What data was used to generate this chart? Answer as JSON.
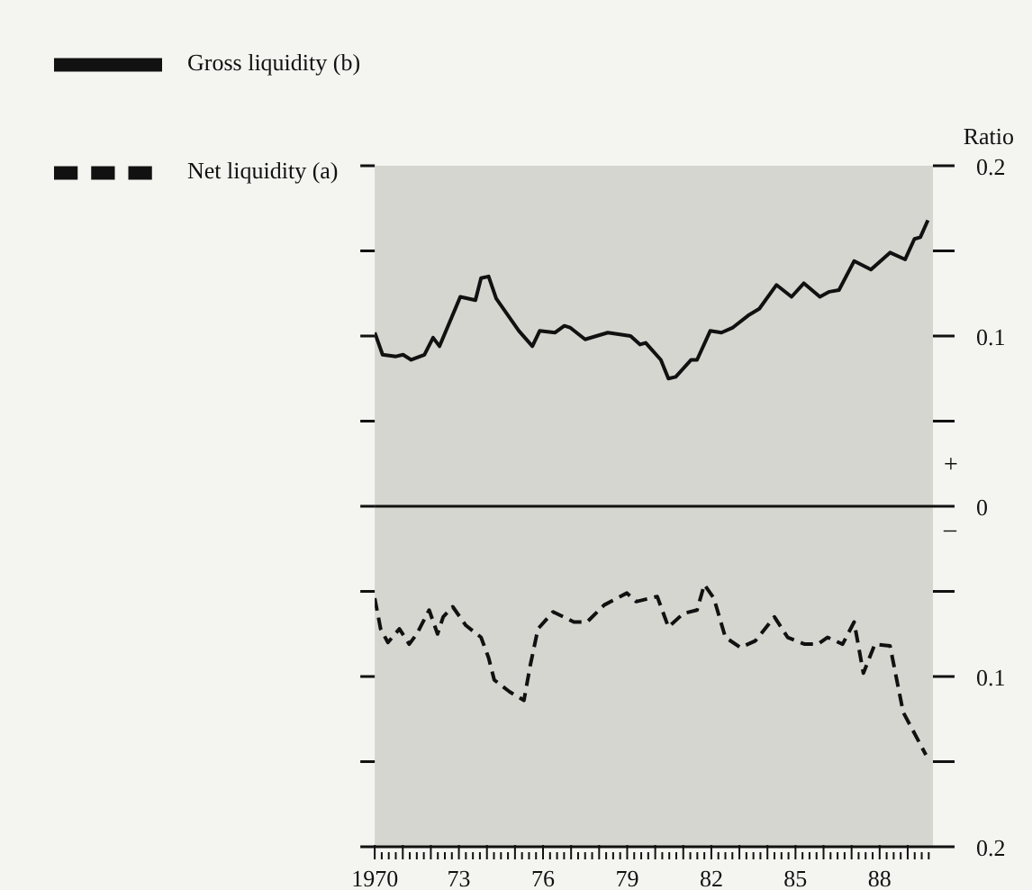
{
  "chart_data": {
    "type": "line",
    "ylabel": "Ratio",
    "legend": "top left",
    "grid": false,
    "xlim": [
      1970,
      1989.9
    ],
    "xticks": [
      {
        "value": 1970,
        "label": "1970"
      },
      {
        "value": 1970.25,
        "label": null
      },
      {
        "value": 1970.5,
        "label": null
      },
      {
        "value": 1970.75,
        "label": null
      },
      {
        "value": 1971,
        "label": null
      },
      {
        "value": 1971.25,
        "label": null
      },
      {
        "value": 1971.5,
        "label": null
      },
      {
        "value": 1971.75,
        "label": null
      },
      {
        "value": 1972,
        "label": null
      },
      {
        "value": 1972.25,
        "label": null
      },
      {
        "value": 1972.5,
        "label": null
      },
      {
        "value": 1972.75,
        "label": null
      },
      {
        "value": 1973,
        "label": "73"
      },
      {
        "value": 1973.25,
        "label": null
      },
      {
        "value": 1973.5,
        "label": null
      },
      {
        "value": 1973.75,
        "label": null
      },
      {
        "value": 1974,
        "label": null
      },
      {
        "value": 1974.25,
        "label": null
      },
      {
        "value": 1974.5,
        "label": null
      },
      {
        "value": 1974.75,
        "label": null
      },
      {
        "value": 1975,
        "label": null
      },
      {
        "value": 1975.25,
        "label": null
      },
      {
        "value": 1975.5,
        "label": null
      },
      {
        "value": 1975.75,
        "label": null
      },
      {
        "value": 1976,
        "label": "76"
      },
      {
        "value": 1976.25,
        "label": null
      },
      {
        "value": 1976.5,
        "label": null
      },
      {
        "value": 1976.75,
        "label": null
      },
      {
        "value": 1977,
        "label": null
      },
      {
        "value": 1977.25,
        "label": null
      },
      {
        "value": 1977.5,
        "label": null
      },
      {
        "value": 1977.75,
        "label": null
      },
      {
        "value": 1978,
        "label": null
      },
      {
        "value": 1978.25,
        "label": null
      },
      {
        "value": 1978.5,
        "label": null
      },
      {
        "value": 1978.75,
        "label": null
      },
      {
        "value": 1979,
        "label": "79"
      },
      {
        "value": 1979.25,
        "label": null
      },
      {
        "value": 1979.5,
        "label": null
      },
      {
        "value": 1979.75,
        "label": null
      },
      {
        "value": 1980,
        "label": null
      },
      {
        "value": 1980.25,
        "label": null
      },
      {
        "value": 1980.5,
        "label": null
      },
      {
        "value": 1980.75,
        "label": null
      },
      {
        "value": 1981,
        "label": null
      },
      {
        "value": 1981.25,
        "label": null
      },
      {
        "value": 1981.5,
        "label": null
      },
      {
        "value": 1981.75,
        "label": null
      },
      {
        "value": 1982,
        "label": "82"
      },
      {
        "value": 1982.25,
        "label": null
      },
      {
        "value": 1982.5,
        "label": null
      },
      {
        "value": 1982.75,
        "label": null
      },
      {
        "value": 1983,
        "label": null
      },
      {
        "value": 1983.25,
        "label": null
      },
      {
        "value": 1983.5,
        "label": null
      },
      {
        "value": 1983.75,
        "label": null
      },
      {
        "value": 1984,
        "label": null
      },
      {
        "value": 1984.25,
        "label": null
      },
      {
        "value": 1984.5,
        "label": null
      },
      {
        "value": 1984.75,
        "label": null
      },
      {
        "value": 1985,
        "label": "85"
      },
      {
        "value": 1985.25,
        "label": null
      },
      {
        "value": 1985.5,
        "label": null
      },
      {
        "value": 1985.75,
        "label": null
      },
      {
        "value": 1986,
        "label": null
      },
      {
        "value": 1986.25,
        "label": null
      },
      {
        "value": 1986.5,
        "label": null
      },
      {
        "value": 1986.75,
        "label": null
      },
      {
        "value": 1987,
        "label": null
      },
      {
        "value": 1987.25,
        "label": null
      },
      {
        "value": 1987.5,
        "label": null
      },
      {
        "value": 1987.75,
        "label": null
      },
      {
        "value": 1988,
        "label": "88"
      },
      {
        "value": 1988.25,
        "label": null
      },
      {
        "value": 1988.5,
        "label": null
      },
      {
        "value": 1988.75,
        "label": null
      },
      {
        "value": 1989,
        "label": null
      },
      {
        "value": 1989.25,
        "label": null
      },
      {
        "value": 1989.5,
        "label": null
      },
      {
        "value": 1989.75,
        "label": null
      }
    ],
    "ylim": [
      -0.2,
      0.2
    ],
    "yticks": [
      {
        "value": -0.2,
        "label": "0.2"
      },
      {
        "value": -0.15,
        "label": null
      },
      {
        "value": -0.1,
        "label": "0.1"
      },
      {
        "value": -0.05,
        "label": null
      },
      0,
      {
        "value": 0.05,
        "label": null
      },
      0.1,
      {
        "value": 0.15,
        "label": null
      },
      0.2
    ],
    "ref_lines": [
      {
        "axis": "y",
        "value": 0,
        "color": "#111111",
        "line_style": "solid"
      }
    ],
    "annotations": [
      "+",
      "–"
    ],
    "series": [
      {
        "name": "Net liquidity (a)",
        "color": "#111111",
        "line_style": "dashed",
        "x": [
          1970.0,
          1970.21,
          1970.47,
          1970.88,
          1971.23,
          1971.5,
          1971.94,
          1972.24,
          1972.44,
          1972.78,
          1973.25,
          1973.79,
          1974.06,
          1974.26,
          1974.81,
          1975.32,
          1975.55,
          1975.82,
          1976.36,
          1977.1,
          1977.57,
          1978.18,
          1978.99,
          1979.32,
          1980.07,
          1980.47,
          1981.0,
          1981.49,
          1981.75,
          1982.09,
          1982.5,
          1983.04,
          1983.57,
          1984.25,
          1984.72,
          1985.33,
          1985.8,
          1986.14,
          1986.68,
          1987.09,
          1987.42,
          1987.83,
          1988.37,
          1988.84,
          1989.65
        ],
        "values": [
          -0.054,
          -0.072,
          -0.08,
          -0.072,
          -0.081,
          -0.075,
          -0.061,
          -0.075,
          -0.065,
          -0.059,
          -0.07,
          -0.077,
          -0.089,
          -0.102,
          -0.109,
          -0.114,
          -0.093,
          -0.072,
          -0.062,
          -0.068,
          -0.068,
          -0.058,
          -0.051,
          -0.056,
          -0.053,
          -0.071,
          -0.063,
          -0.061,
          -0.046,
          -0.054,
          -0.077,
          -0.083,
          -0.079,
          -0.065,
          -0.077,
          -0.081,
          -0.081,
          -0.077,
          -0.081,
          -0.068,
          -0.098,
          -0.081,
          -0.082,
          -0.121,
          -0.146
        ]
      },
      {
        "name": "Gross liquidity (b)",
        "color": "#111111",
        "line_style": "solid",
        "x": [
          1970.0,
          1970.28,
          1970.76,
          1971.01,
          1971.3,
          1971.77,
          1972.08,
          1972.31,
          1973.05,
          1973.59,
          1973.79,
          1974.06,
          1974.33,
          1975.14,
          1975.62,
          1975.88,
          1976.43,
          1976.76,
          1976.96,
          1977.5,
          1978.31,
          1979.12,
          1979.46,
          1979.66,
          1980.2,
          1980.47,
          1980.73,
          1981.28,
          1981.49,
          1981.96,
          1982.36,
          1982.77,
          1983.31,
          1983.71,
          1984.32,
          1984.86,
          1985.3,
          1985.87,
          1986.21,
          1986.55,
          1987.09,
          1987.69,
          1988.37,
          1988.91,
          1989.24,
          1989.45,
          1989.72
        ],
        "values": [
          0.102,
          0.089,
          0.088,
          0.089,
          0.086,
          0.089,
          0.099,
          0.094,
          0.123,
          0.121,
          0.134,
          0.135,
          0.122,
          0.103,
          0.094,
          0.103,
          0.102,
          0.106,
          0.105,
          0.098,
          0.102,
          0.1,
          0.095,
          0.096,
          0.086,
          0.075,
          0.076,
          0.086,
          0.086,
          0.103,
          0.102,
          0.105,
          0.112,
          0.116,
          0.13,
          0.123,
          0.131,
          0.123,
          0.126,
          0.127,
          0.144,
          0.139,
          0.149,
          0.145,
          0.157,
          0.158,
          0.168
        ]
      }
    ]
  }
}
